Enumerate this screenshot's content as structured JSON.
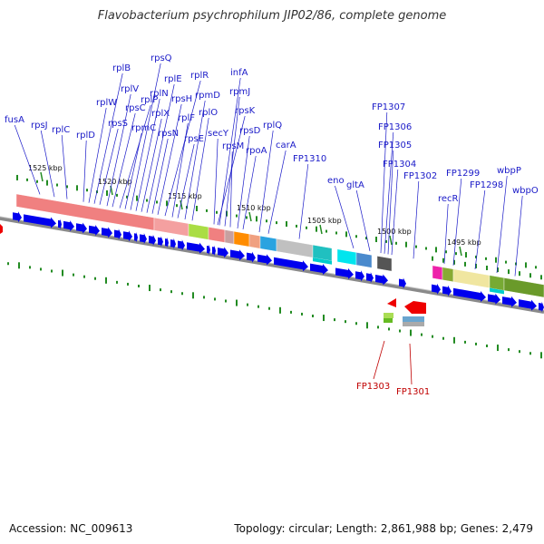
{
  "title": "Flavobacterium psychrophilum JIP02/86, complete genome",
  "footer": {
    "accession": "Accession: NC_009613",
    "stats": "Topology: circular; Length: 2,861,988 bp; Genes: 2,479"
  },
  "scale_labels": [
    "1525 kbp",
    "1520 kbp",
    "1515 kbp",
    "1510 kbp",
    "1505 kbp",
    "1500 kbp",
    "1495 kbp"
  ],
  "gene_labels_top": [
    "fusA",
    "rpsJ",
    "rplC",
    "rplD",
    "rplW",
    "rplB",
    "rpsS",
    "rplV",
    "rpsC",
    "rplP",
    "rpmC",
    "rpsQ",
    "rplN",
    "rplX",
    "rplE",
    "rpsN",
    "rpsH",
    "rplR",
    "rplF",
    "rpsE",
    "rpmD",
    "rplO",
    "secY",
    "infA",
    "rpmJ",
    "rpsM",
    "rpsK",
    "rpsD",
    "rpoA",
    "rplQ",
    "carA",
    "FP1310",
    "eno",
    "gltA",
    "FP1307",
    "FP1306",
    "FP1305",
    "FP1304",
    "FP1302",
    "recR",
    "FP1299",
    "FP1298",
    "wbpP",
    "wbpO"
  ],
  "gene_labels_bottom": [
    "FP1303",
    "FP1301"
  ],
  "colors": {
    "forward_gene": "#0000ee",
    "reverse_gene": "#ee0000",
    "label_blue": "#1a1ac8",
    "label_red": "#c00000",
    "tick_green": "#228b22",
    "backbone": "#777777"
  }
}
